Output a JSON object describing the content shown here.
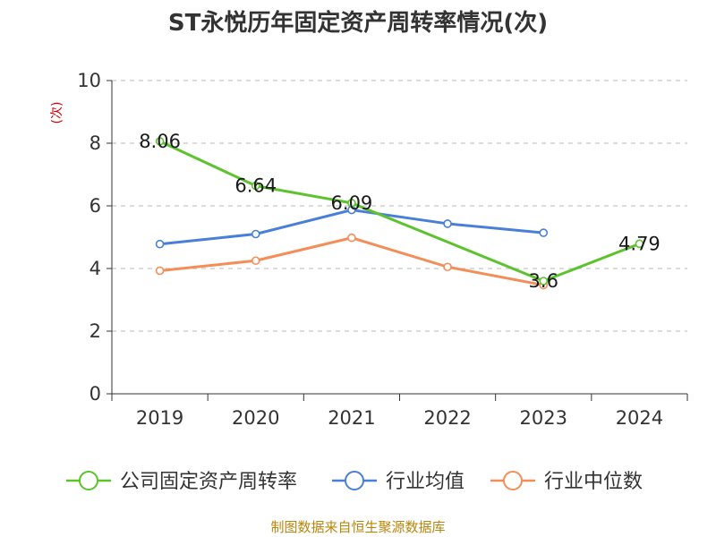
{
  "chart_data": {
    "type": "line",
    "title": "ST永悦历年固定资产周转率情况(次)",
    "ylabel": "(次)",
    "xlabel": "",
    "categories": [
      "2019",
      "2020",
      "2021",
      "2022",
      "2023",
      "2024"
    ],
    "ylim": [
      0,
      10
    ],
    "yticks": [
      0,
      2,
      4,
      6,
      8,
      10
    ],
    "grid": true,
    "legend_position": "bottom",
    "series": [
      {
        "name": "公司固定资产周转率",
        "color": "#5cc32e",
        "values": [
          8.06,
          6.64,
          6.09,
          null,
          3.6,
          4.79
        ],
        "labels": [
          "8.06",
          "6.64",
          "6.09",
          "",
          "3.6",
          "4.79"
        ]
      },
      {
        "name": "行业均值",
        "color": "#4a7fd8",
        "values": [
          4.78,
          5.1,
          5.87,
          5.43,
          5.14,
          null
        ]
      },
      {
        "name": "行业中位数",
        "color": "#f48d58",
        "values": [
          3.93,
          4.25,
          4.98,
          4.05,
          3.47,
          null
        ]
      }
    ]
  },
  "source": "制图数据来自恒生聚源数据库"
}
